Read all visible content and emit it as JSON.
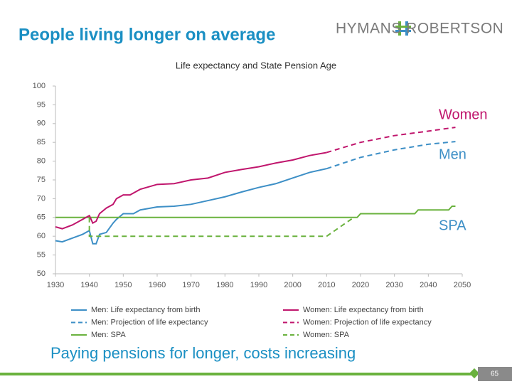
{
  "header": {
    "title": "People living longer on average",
    "logo": "HYMANS ROBERTSON"
  },
  "chart_data": {
    "type": "line",
    "title": "Life expectancy and State Pension Age",
    "xlim": [
      1930,
      2050
    ],
    "xticks": [
      1930,
      1940,
      1950,
      1960,
      1970,
      1980,
      1990,
      2000,
      2010,
      2020,
      2030,
      2040,
      2050
    ],
    "ylim": [
      50,
      100
    ],
    "yticks": [
      50,
      55,
      60,
      65,
      70,
      75,
      80,
      85,
      90,
      95,
      100
    ],
    "grid": false,
    "series": [
      {
        "name": "Men: Life expectancy from birth",
        "color": "#3d8fc6",
        "dashed": false,
        "x": [
          1930,
          1932,
          1935,
          1938,
          1940,
          1941,
          1942,
          1943,
          1945,
          1947,
          1948,
          1950,
          1953,
          1955,
          1960,
          1965,
          1970,
          1975,
          1980,
          1985,
          1990,
          1995,
          2000,
          2005,
          2010
        ],
        "values": [
          58.8,
          58.5,
          59.5,
          60.5,
          61.5,
          58,
          58,
          60.5,
          61,
          63.5,
          64.5,
          66,
          66,
          67,
          67.8,
          68,
          68.5,
          69.5,
          70.5,
          71.8,
          73,
          74,
          75.5,
          77,
          78
        ]
      },
      {
        "name": "Men: Projection of life expectancy",
        "color": "#3d8fc6",
        "dashed": true,
        "x": [
          2010,
          2020,
          2030,
          2040,
          2048
        ],
        "values": [
          78,
          81,
          83,
          84.5,
          85.2
        ]
      },
      {
        "name": "Men: SPA",
        "color": "#6ab23e",
        "dashed": false,
        "x": [
          1930,
          2019,
          2020,
          2036,
          2037,
          2046,
          2047,
          2048
        ],
        "values": [
          65,
          65,
          66,
          66,
          67,
          67,
          68,
          68
        ]
      },
      {
        "name": "Women: Life expectancy from birth",
        "color": "#c0166d",
        "dashed": false,
        "x": [
          1930,
          1932,
          1935,
          1938,
          1940,
          1941,
          1942,
          1943,
          1945,
          1947,
          1948,
          1950,
          1952,
          1955,
          1960,
          1965,
          1970,
          1975,
          1980,
          1985,
          1990,
          1995,
          2000,
          2005,
          2010
        ],
        "values": [
          62.5,
          62,
          63,
          64.5,
          65.5,
          63.5,
          64,
          66,
          67.5,
          68.5,
          70,
          71,
          71,
          72.5,
          73.8,
          74,
          75,
          75.5,
          77,
          77.8,
          78.5,
          79.5,
          80.3,
          81.5,
          82.3
        ]
      },
      {
        "name": "Women: Projection of life expectancy",
        "color": "#c0166d",
        "dashed": true,
        "x": [
          2010,
          2020,
          2030,
          2040,
          2048
        ],
        "values": [
          82.3,
          85,
          86.8,
          88,
          89
        ]
      },
      {
        "name": "Women: SPA",
        "color": "#6ab23e",
        "dashed": true,
        "x": [
          1940,
          1940,
          2010,
          2018
        ],
        "values": [
          65,
          60,
          60,
          65
        ]
      }
    ],
    "annotations": [
      "Women",
      "Men",
      "SPA"
    ]
  },
  "footer": {
    "text": "Paying pensions for longer, costs increasing",
    "page": "65"
  }
}
